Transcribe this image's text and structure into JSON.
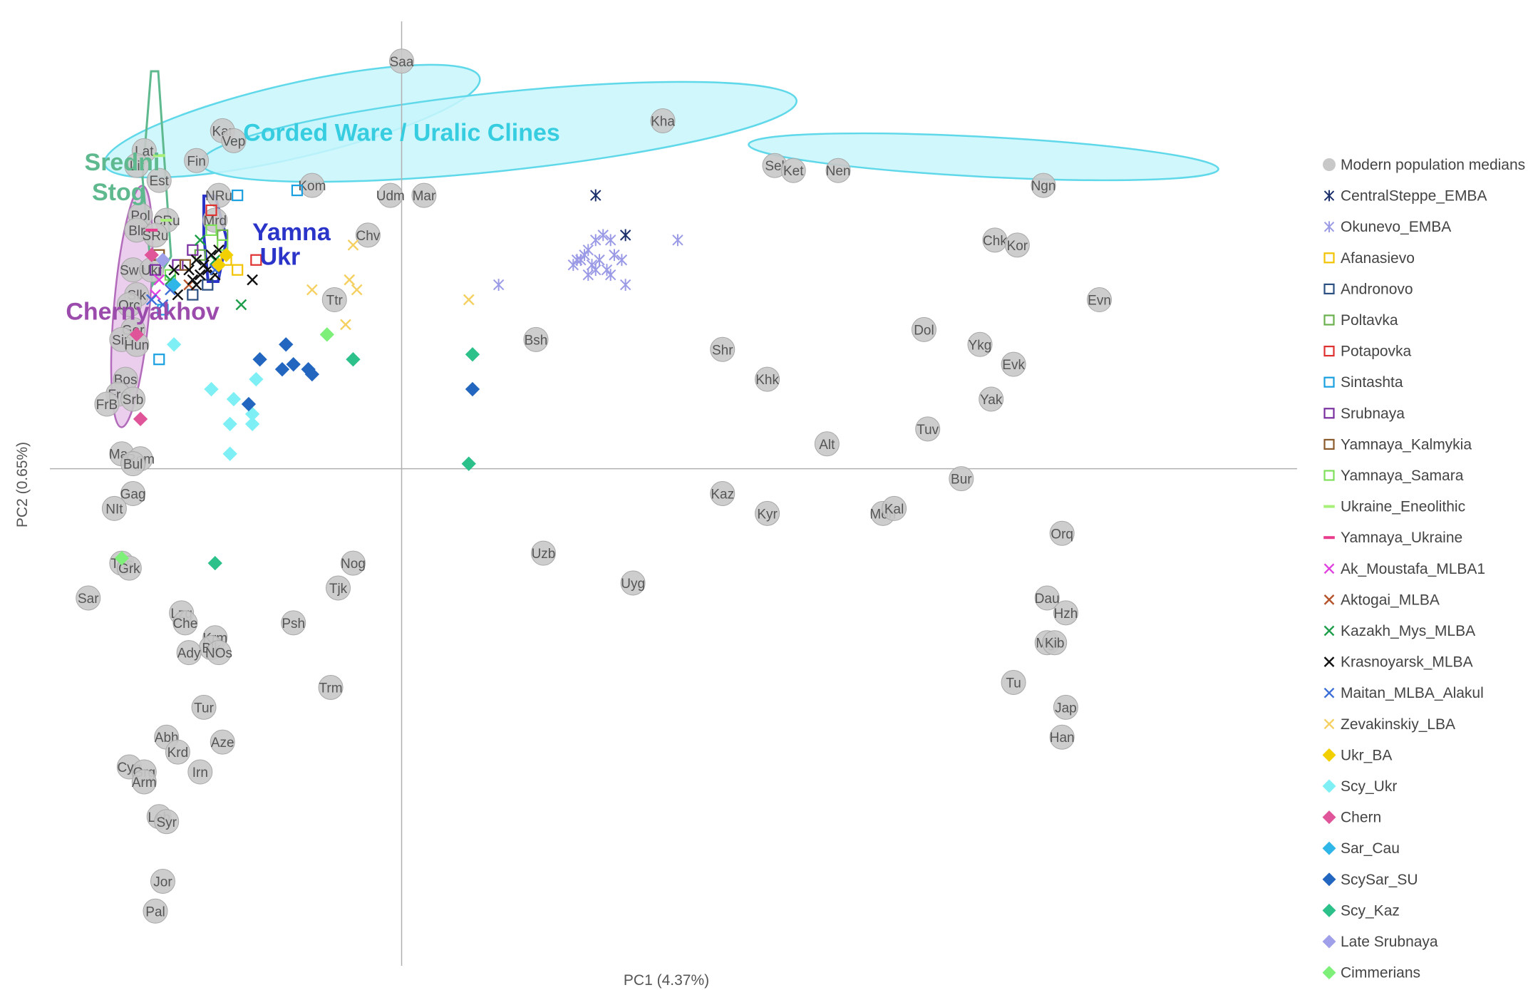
{
  "chart_data": {
    "type": "scatter",
    "title": "",
    "xlabel": "PC1 (4.37%)",
    "ylabel": "PC2 (0.65%)",
    "xlim": [
      -100,
      240
    ],
    "ylim": [
      -100,
      90
    ],
    "grid": false,
    "legend_placement": "right",
    "colors": {
      "modern": "#c8c8c8",
      "modern_stroke": "#a8a8a8",
      "cline_fill": "#c8f6fb",
      "cline_stroke": "#5fd8ea",
      "sredni_stroke": "#5fb98e",
      "yamna_stroke": "#2b34c8",
      "chern_fill": "#e8c6ea",
      "chern_stroke": "#b36bbb"
    },
    "region_labels": [
      {
        "text": "Corded Ware / Uralic Clines",
        "color": "#37cde0",
        "x": 0,
        "y": 66
      },
      {
        "text": "Sredni",
        "color": "#5fb98e",
        "x": -85,
        "y": 60
      },
      {
        "text": "Stog",
        "color": "#5fb98e",
        "x": -83,
        "y": 54
      },
      {
        "text": "Yamna",
        "color": "#2b34c8",
        "x": -40,
        "y": 46
      },
      {
        "text": "Ukr",
        "color": "#2b34c8",
        "x": -38,
        "y": 41
      },
      {
        "text": "Chernyakhov",
        "color": "#9b4bab",
        "x": -90,
        "y": 30
      }
    ],
    "modern_points": [
      {
        "label": "Saa",
        "x": 0,
        "y": 82
      },
      {
        "label": "Kha",
        "x": 70,
        "y": 70
      },
      {
        "label": "Kar",
        "x": -48,
        "y": 68
      },
      {
        "label": "Vep",
        "x": -45,
        "y": 66
      },
      {
        "label": "Lat",
        "x": -69,
        "y": 64
      },
      {
        "label": "Lit",
        "x": -71,
        "y": 61
      },
      {
        "label": "Fin",
        "x": -55,
        "y": 62
      },
      {
        "label": "Est",
        "x": -65,
        "y": 58
      },
      {
        "label": "Sel",
        "x": 100,
        "y": 61
      },
      {
        "label": "Ket",
        "x": 105,
        "y": 60
      },
      {
        "label": "Nen",
        "x": 117,
        "y": 60
      },
      {
        "label": "Ngn",
        "x": 172,
        "y": 57
      },
      {
        "label": "Kom",
        "x": -24,
        "y": 57
      },
      {
        "label": "NRu",
        "x": -49,
        "y": 55
      },
      {
        "label": "Udm",
        "x": -3,
        "y": 55
      },
      {
        "label": "Mar",
        "x": 6,
        "y": 55
      },
      {
        "label": "Pol",
        "x": -70,
        "y": 51
      },
      {
        "label": "CRu",
        "x": -63,
        "y": 50
      },
      {
        "label": "Blr",
        "x": -71,
        "y": 48
      },
      {
        "label": "SRu",
        "x": -66,
        "y": 47
      },
      {
        "label": "Mrd",
        "x": -50,
        "y": 50
      },
      {
        "label": "Chv",
        "x": -9,
        "y": 47
      },
      {
        "label": "Swe",
        "x": -72,
        "y": 40
      },
      {
        "label": "Ukr",
        "x": -67,
        "y": 40
      },
      {
        "label": "Chk",
        "x": 159,
        "y": 46
      },
      {
        "label": "Kor",
        "x": 165,
        "y": 45
      },
      {
        "label": "Slk",
        "x": -71,
        "y": 35
      },
      {
        "label": "Orc",
        "x": -73,
        "y": 33
      },
      {
        "label": "Ttr",
        "x": -18,
        "y": 34
      },
      {
        "label": "Evn",
        "x": 187,
        "y": 34
      },
      {
        "label": "Ger",
        "x": -72,
        "y": 28
      },
      {
        "label": "Sin",
        "x": -75,
        "y": 26
      },
      {
        "label": "Hun",
        "x": -71,
        "y": 25
      },
      {
        "label": "Bsh",
        "x": 36,
        "y": 26
      },
      {
        "label": "Dol",
        "x": 140,
        "y": 28
      },
      {
        "label": "Ykg",
        "x": 155,
        "y": 25
      },
      {
        "label": "Shr",
        "x": 86,
        "y": 24
      },
      {
        "label": "Evk",
        "x": 164,
        "y": 21
      },
      {
        "label": "Khk",
        "x": 98,
        "y": 18
      },
      {
        "label": "Bos",
        "x": -74,
        "y": 18
      },
      {
        "label": "Fre",
        "x": -76,
        "y": 15
      },
      {
        "label": "Srb",
        "x": -72,
        "y": 14
      },
      {
        "label": "FrB",
        "x": -79,
        "y": 13
      },
      {
        "label": "Yak",
        "x": 158,
        "y": 14
      },
      {
        "label": "Tuv",
        "x": 141,
        "y": 8
      },
      {
        "label": "Alt",
        "x": 114,
        "y": 5
      },
      {
        "label": "Mac",
        "x": -75,
        "y": 3
      },
      {
        "label": "Rom",
        "x": -70,
        "y": 2
      },
      {
        "label": "Bul",
        "x": -72,
        "y": 1
      },
      {
        "label": "Bur",
        "x": 150,
        "y": -2
      },
      {
        "label": "Gag",
        "x": -72,
        "y": -5
      },
      {
        "label": "Kaz",
        "x": 86,
        "y": -5
      },
      {
        "label": "NIt",
        "x": -77,
        "y": -8
      },
      {
        "label": "Kyr",
        "x": 98,
        "y": -9
      },
      {
        "label": "Mon",
        "x": 129,
        "y": -9
      },
      {
        "label": "Kal",
        "x": 132,
        "y": -8
      },
      {
        "label": "Orq",
        "x": 177,
        "y": -13
      },
      {
        "label": "Uzb",
        "x": 38,
        "y": -17
      },
      {
        "label": "Nog",
        "x": -13,
        "y": -19
      },
      {
        "label": "Tus",
        "x": -75,
        "y": -19
      },
      {
        "label": "Grk",
        "x": -73,
        "y": -20
      },
      {
        "label": "Tjk",
        "x": -17,
        "y": -24
      },
      {
        "label": "Uyg",
        "x": 62,
        "y": -23
      },
      {
        "label": "Sar",
        "x": -84,
        "y": -26
      },
      {
        "label": "Dau",
        "x": 173,
        "y": -26
      },
      {
        "label": "Hzh",
        "x": 178,
        "y": -29
      },
      {
        "label": "Lzg",
        "x": -59,
        "y": -29
      },
      {
        "label": "Che",
        "x": -58,
        "y": -31
      },
      {
        "label": "Psh",
        "x": -29,
        "y": -31
      },
      {
        "label": "Krm",
        "x": -50,
        "y": -34
      },
      {
        "label": "Blk",
        "x": -51,
        "y": -36
      },
      {
        "label": "Ady",
        "x": -57,
        "y": -37
      },
      {
        "label": "NOs",
        "x": -49,
        "y": -37
      },
      {
        "label": "MgI",
        "x": 173,
        "y": -35
      },
      {
        "label": "Kib",
        "x": 175,
        "y": -35
      },
      {
        "label": "Trm",
        "x": -19,
        "y": -44
      },
      {
        "label": "Tu",
        "x": 164,
        "y": -43
      },
      {
        "label": "Tur",
        "x": -53,
        "y": -48
      },
      {
        "label": "Jap",
        "x": 178,
        "y": -48
      },
      {
        "label": "Abh",
        "x": -63,
        "y": -54
      },
      {
        "label": "Aze",
        "x": -48,
        "y": -55
      },
      {
        "label": "Han",
        "x": 177,
        "y": -54
      },
      {
        "label": "Krd",
        "x": -60,
        "y": -57
      },
      {
        "label": "Cyp",
        "x": -73,
        "y": -60
      },
      {
        "label": "Grg",
        "x": -69,
        "y": -61
      },
      {
        "label": "Irn",
        "x": -54,
        "y": -61
      },
      {
        "label": "Arm",
        "x": -69,
        "y": -63
      },
      {
        "label": "Leb",
        "x": -65,
        "y": -70
      },
      {
        "label": "Syr",
        "x": -63,
        "y": -71
      },
      {
        "label": "Jor",
        "x": -64,
        "y": -83
      },
      {
        "label": "Pal",
        "x": -66,
        "y": -89
      }
    ],
    "series": [
      {
        "name": "CentralSteppe_EMBA",
        "marker": "asterisk",
        "color": "#1b2f6b",
        "x": [
          52,
          60
        ],
        "y": [
          55,
          47
        ]
      },
      {
        "name": "Okunevo_EMBA",
        "marker": "asterisk",
        "color": "#9a9ae6",
        "x": [
          26,
          46,
          48,
          50,
          52,
          54,
          56,
          49,
          51,
          53,
          55,
          57,
          50,
          52,
          56,
          59,
          60,
          74,
          47
        ],
        "y": [
          37,
          41,
          42,
          44,
          46,
          47,
          46,
          43,
          41,
          42,
          40,
          43,
          39,
          40,
          39,
          42,
          37,
          46,
          42
        ]
      },
      {
        "name": "Afanasievo",
        "marker": "square",
        "color": "#f2c300",
        "x": [
          -44,
          -47
        ],
        "y": [
          40,
          42
        ]
      },
      {
        "name": "Andronovo",
        "marker": "square",
        "color": "#2a4f80",
        "x": [
          -56,
          -52
        ],
        "y": [
          35,
          37
        ]
      },
      {
        "name": "Poltavka",
        "marker": "square",
        "color": "#6ab04c",
        "x": [
          -54,
          -48
        ],
        "y": [
          43,
          47
        ]
      },
      {
        "name": "Potapovka",
        "marker": "square",
        "color": "#e03131",
        "x": [
          -51,
          -39
        ],
        "y": [
          52,
          42
        ]
      },
      {
        "name": "Sintashta",
        "marker": "square",
        "color": "#1aa0e0",
        "x": [
          -44,
          -28,
          -65,
          -64
        ],
        "y": [
          55,
          56,
          22,
          32
        ]
      },
      {
        "name": "Srubnaya",
        "marker": "square",
        "color": "#7a2fa0",
        "x": [
          -66,
          -60,
          -56
        ],
        "y": [
          40,
          41,
          44
        ]
      },
      {
        "name": "Yamnaya_Kalmykia",
        "marker": "square",
        "color": "#8b5a2b",
        "x": [
          -65,
          -58
        ],
        "y": [
          43,
          41
        ]
      },
      {
        "name": "Yamnaya_Samara",
        "marker": "square",
        "color": "#7ee05a",
        "x": [
          -51,
          -48,
          -62
        ],
        "y": [
          48,
          45,
          39
        ]
      },
      {
        "name": "Ukraine_Eneolithic",
        "marker": "dash",
        "color": "#a8f07a",
        "x": [
          -65,
          -63
        ],
        "y": [
          63,
          50
        ]
      },
      {
        "name": "Yamnaya_Ukraine",
        "marker": "dash",
        "color": "#ea3c8c",
        "x": [
          -67
        ],
        "y": [
          48
        ]
      },
      {
        "name": "Ak_Moustafa_MLBA1",
        "marker": "x",
        "color": "#e040e0",
        "x": [
          -65,
          -66
        ],
        "y": [
          38,
          35
        ]
      },
      {
        "name": "Aktogai_MLBA",
        "marker": "x",
        "color": "#b5532a",
        "x": [
          -57
        ],
        "y": [
          37
        ]
      },
      {
        "name": "Kazakh_Mys_MLBA",
        "marker": "x",
        "color": "#1e9e4a",
        "x": [
          -54,
          -43,
          -50,
          -62
        ],
        "y": [
          46,
          33,
          42,
          38
        ]
      },
      {
        "name": "Krasnoyarsk_MLBA",
        "marker": "x",
        "color": "#111111",
        "x": [
          -57,
          -55,
          -53,
          -51,
          -49,
          -56,
          -54,
          -52,
          -40,
          -60,
          -61,
          -50,
          -55
        ],
        "y": [
          40,
          42,
          41,
          43,
          44,
          38,
          39,
          40,
          38,
          35,
          40,
          39,
          37
        ]
      },
      {
        "name": "Maitan_MLBA_Alakul",
        "marker": "x",
        "color": "#3c6ed8",
        "x": [
          -67,
          -64,
          -62,
          -50
        ],
        "y": [
          34,
          33,
          36,
          40
        ]
      },
      {
        "name": "Zevakinskiy_LBA",
        "marker": "x",
        "color": "#f5d060",
        "x": [
          -13,
          -14,
          -24,
          -12,
          -15,
          18
        ],
        "y": [
          45,
          38,
          36,
          36,
          29,
          34
        ]
      },
      {
        "name": "Ukr_BA",
        "marker": "diamond",
        "color": "#f2d000",
        "x": [
          -49,
          -47
        ],
        "y": [
          41,
          43
        ]
      },
      {
        "name": "Scy_Ukr",
        "marker": "diamond",
        "color": "#7ef0f5",
        "x": [
          -61,
          -51,
          -45,
          -46,
          -40,
          -40,
          -46,
          -39
        ],
        "y": [
          25,
          16,
          14,
          9,
          9,
          11,
          3,
          18
        ]
      },
      {
        "name": "Chern",
        "marker": "diamond",
        "color": "#e0559a",
        "x": [
          -67,
          -71,
          -70
        ],
        "y": [
          43,
          27,
          10
        ]
      },
      {
        "name": "Sar_Cau",
        "marker": "diamond",
        "color": "#2fb6e8",
        "x": [
          -61
        ],
        "y": [
          37
        ]
      },
      {
        "name": "ScySar_SU",
        "marker": "diamond",
        "color": "#2266c0",
        "x": [
          -38,
          -31,
          -29,
          -32,
          -25,
          -24,
          -41,
          19
        ],
        "y": [
          22,
          25,
          21,
          20,
          20,
          19,
          13,
          16
        ]
      },
      {
        "name": "Scy_Kaz",
        "marker": "diamond",
        "color": "#2cc08a",
        "x": [
          -13,
          19,
          18,
          -50
        ],
        "y": [
          22,
          23,
          1,
          -19
        ]
      },
      {
        "name": "Late Srubnaya",
        "marker": "diamond",
        "color": "#a0a0ea",
        "x": [
          -64
        ],
        "y": [
          42
        ]
      },
      {
        "name": "Cimmerians",
        "marker": "diamond",
        "color": "#7ef07a",
        "x": [
          -20,
          -75
        ],
        "y": [
          27,
          -18
        ]
      }
    ],
    "legend": [
      {
        "label": "Modern population medians",
        "marker": "circle",
        "color": "#c8c8c8"
      },
      {
        "label": "CentralSteppe_EMBA",
        "marker": "asterisk",
        "color": "#1b2f6b"
      },
      {
        "label": "Okunevo_EMBA",
        "marker": "asterisk",
        "color": "#9a9ae6"
      },
      {
        "label": "Afanasievo",
        "marker": "square",
        "color": "#f2c300"
      },
      {
        "label": "Andronovo",
        "marker": "square",
        "color": "#2a4f80"
      },
      {
        "label": "Poltavka",
        "marker": "square",
        "color": "#6ab04c"
      },
      {
        "label": "Potapovka",
        "marker": "square",
        "color": "#e03131"
      },
      {
        "label": "Sintashta",
        "marker": "square",
        "color": "#1aa0e0"
      },
      {
        "label": "Srubnaya",
        "marker": "square",
        "color": "#7a2fa0"
      },
      {
        "label": "Yamnaya_Kalmykia",
        "marker": "square",
        "color": "#8b5a2b"
      },
      {
        "label": "Yamnaya_Samara",
        "marker": "square",
        "color": "#7ee05a"
      },
      {
        "label": "Ukraine_Eneolithic",
        "marker": "dash",
        "color": "#a8f07a"
      },
      {
        "label": "Yamnaya_Ukraine",
        "marker": "dash",
        "color": "#ea3c8c"
      },
      {
        "label": "Ak_Moustafa_MLBA1",
        "marker": "x",
        "color": "#e040e0"
      },
      {
        "label": "Aktogai_MLBA",
        "marker": "x",
        "color": "#b5532a"
      },
      {
        "label": "Kazakh_Mys_MLBA",
        "marker": "x",
        "color": "#1e9e4a"
      },
      {
        "label": "Krasnoyarsk_MLBA",
        "marker": "x",
        "color": "#111111"
      },
      {
        "label": "Maitan_MLBA_Alakul",
        "marker": "x",
        "color": "#3c6ed8"
      },
      {
        "label": "Zevakinskiy_LBA",
        "marker": "x",
        "color": "#f5d060"
      },
      {
        "label": "Ukr_BA",
        "marker": "diamond",
        "color": "#f2d000"
      },
      {
        "label": "Scy_Ukr",
        "marker": "diamond",
        "color": "#7ef0f5"
      },
      {
        "label": "Chern",
        "marker": "diamond",
        "color": "#e0559a"
      },
      {
        "label": "Sar_Cau",
        "marker": "diamond",
        "color": "#2fb6e8"
      },
      {
        "label": "ScySar_SU",
        "marker": "diamond",
        "color": "#2266c0"
      },
      {
        "label": "Scy_Kaz",
        "marker": "diamond",
        "color": "#2cc08a"
      },
      {
        "label": "Late Srubnaya",
        "marker": "diamond",
        "color": "#a0a0ea"
      },
      {
        "label": "Cimmerians",
        "marker": "diamond",
        "color": "#7ef07a"
      }
    ]
  }
}
